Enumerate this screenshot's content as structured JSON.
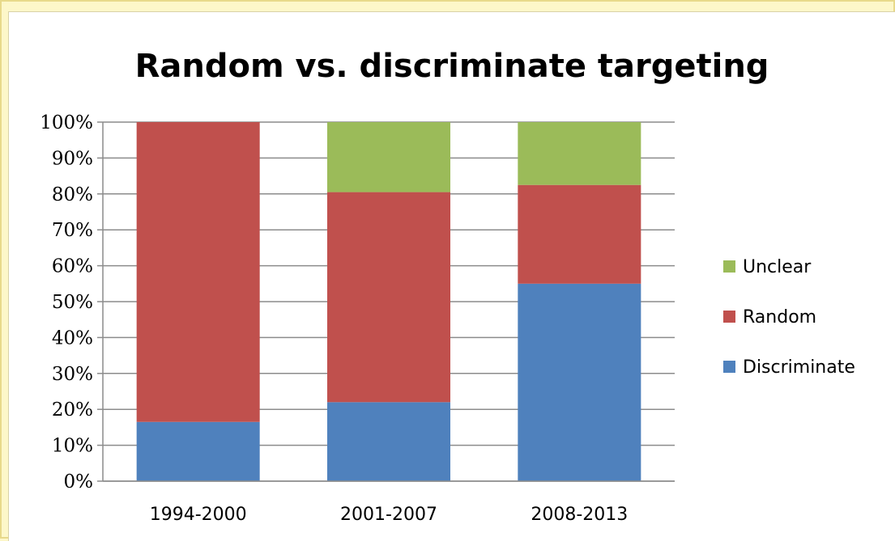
{
  "chart_data": {
    "type": "bar",
    "stacked": true,
    "title": "Random vs. discriminate targeting",
    "xlabel": "",
    "ylabel": "",
    "categories": [
      "1994-2000",
      "2001-2007",
      "2008-2013"
    ],
    "ylim": [
      0,
      100
    ],
    "y_ticks": [
      "0%",
      "10%",
      "20%",
      "30%",
      "40%",
      "50%",
      "60%",
      "70%",
      "80%",
      "90%",
      "100%"
    ],
    "grid": true,
    "legend_position": "right",
    "series": [
      {
        "name": "Discriminate",
        "color": "#4f81bd",
        "values": [
          16.5,
          22,
          55
        ]
      },
      {
        "name": "Random",
        "color": "#c0504d",
        "values": [
          83.5,
          58.5,
          27.5
        ]
      },
      {
        "name": "Unclear",
        "color": "#9bbb59",
        "values": [
          0,
          19.5,
          17.5
        ]
      }
    ]
  }
}
